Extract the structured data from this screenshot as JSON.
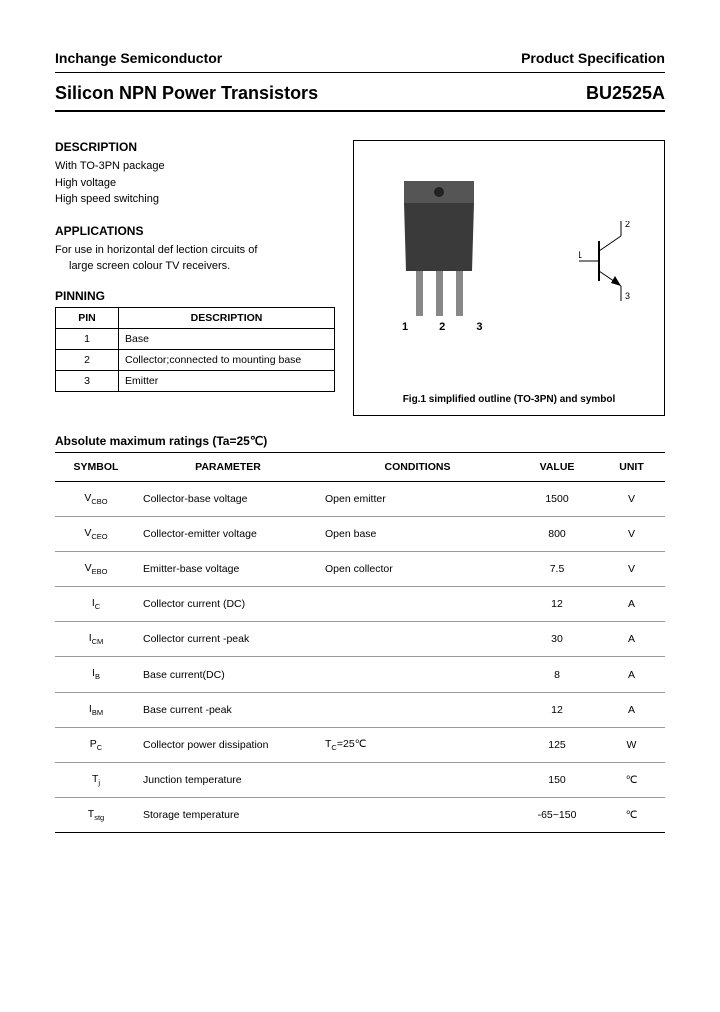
{
  "header": {
    "company": "Inchange Semiconductor",
    "doc_type": "Product Specification",
    "title": "Silicon NPN Power Transistors",
    "part_number": "BU2525A"
  },
  "description": {
    "heading": "DESCRIPTION",
    "items": [
      "With TO-3PN package",
      "High voltage",
      "High speed switching"
    ]
  },
  "applications": {
    "heading": "APPLICATIONS",
    "line1": "For use in horizontal def   lection circuits of",
    "line2": "large screen colour TV receivers."
  },
  "pinning": {
    "heading": "PINNING",
    "columns": [
      "PIN",
      "DESCRIPTION"
    ],
    "rows": [
      {
        "pin": "1",
        "desc": "Base"
      },
      {
        "pin": "2",
        "desc": "Collector;connected to mounting base"
      },
      {
        "pin": "3",
        "desc": "Emitter"
      }
    ]
  },
  "figure": {
    "caption": "Fig.1  simplified  outline  (TO-3PN)  and  symbol",
    "pin_nums": "1  2  3",
    "sym_labels": {
      "one": "1",
      "two": "2",
      "three": "3"
    }
  },
  "ratings": {
    "heading": "Absolute maximum ratings (Ta=25℃)",
    "columns": [
      "SYMBOL",
      "PARAMETER",
      "CONDITIONS",
      "VALUE",
      "UNIT"
    ],
    "rows": [
      {
        "sym_base": "V",
        "sym_sub": "CBO",
        "param": "Collector-base voltage",
        "cond": "Open emitter",
        "value": "1500",
        "unit": "V"
      },
      {
        "sym_base": "V",
        "sym_sub": "CEO",
        "param": "Collector-emitter voltage",
        "cond": "Open base",
        "value": "800",
        "unit": "V"
      },
      {
        "sym_base": "V",
        "sym_sub": "EBO",
        "param": "Emitter-base voltage",
        "cond": "Open collector",
        "value": "7.5",
        "unit": "V"
      },
      {
        "sym_base": "I",
        "sym_sub": "C",
        "param": "Collector current (DC)",
        "cond": "",
        "value": "12",
        "unit": "A"
      },
      {
        "sym_base": "I",
        "sym_sub": "CM",
        "param": "Collector current -peak",
        "cond": "",
        "value": "30",
        "unit": "A"
      },
      {
        "sym_base": "I",
        "sym_sub": "B",
        "param": "Base current(DC)",
        "cond": "",
        "value": "8",
        "unit": "A"
      },
      {
        "sym_base": "I",
        "sym_sub": "BM",
        "param": "Base current -peak",
        "cond": "",
        "value": "12",
        "unit": "A"
      },
      {
        "sym_base": "P",
        "sym_sub": "C",
        "param": "Collector power dissipation",
        "cond": "T",
        "cond_sub": "C",
        "cond_rest": "=25℃",
        "value": "125",
        "unit": "W"
      },
      {
        "sym_base": "T",
        "sym_sub": "j",
        "param": "Junction temperature",
        "cond": "",
        "value": "150",
        "unit": "℃"
      },
      {
        "sym_base": "T",
        "sym_sub": "stg",
        "param": "Storage temperature",
        "cond": "",
        "value": "-65~150",
        "unit": "℃"
      }
    ]
  },
  "colors": {
    "text": "#000000",
    "bg": "#ffffff",
    "border_light": "#999999",
    "component_body": "#3a3a3a",
    "component_top": "#555555"
  }
}
